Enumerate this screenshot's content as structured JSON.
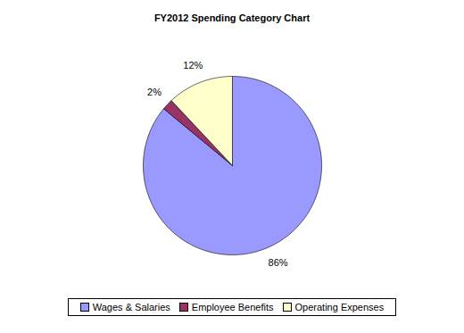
{
  "chart_data": {
    "type": "pie",
    "title": "FY2012 Spending Category Chart",
    "categories": [
      "Wages & Salaries",
      "Employee Benefits",
      "Operating Expenses"
    ],
    "values": [
      86,
      2,
      12
    ],
    "value_labels": [
      "86%",
      "2%",
      "12%"
    ],
    "colors": [
      "#9999ff",
      "#993366",
      "#ffffcc"
    ],
    "data_labels": true,
    "legend": "bottom"
  }
}
